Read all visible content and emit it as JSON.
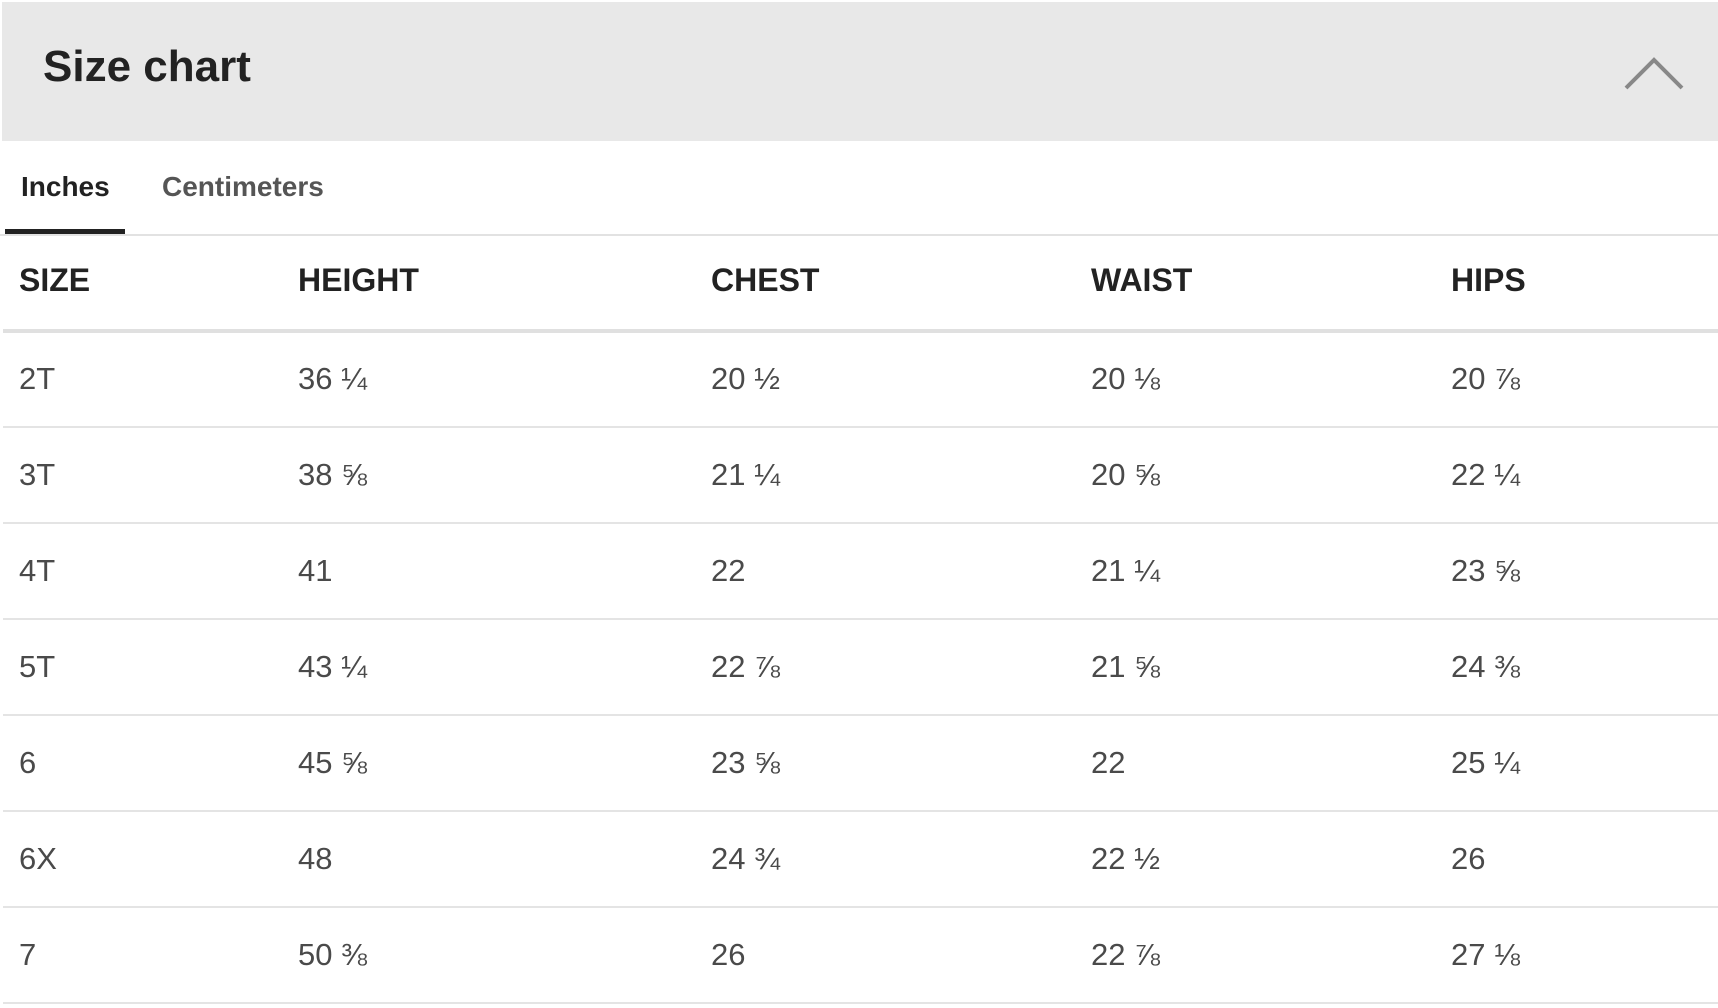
{
  "header": {
    "title": "Size chart"
  },
  "tabs": [
    "Inches",
    "Centimeters"
  ],
  "table": {
    "columns": [
      "SIZE",
      "HEIGHT",
      "CHEST",
      "WAIST",
      "HIPS"
    ],
    "rows": [
      [
        "2T",
        "36 ¼",
        "20 ½",
        "20 ⅛",
        "20 ⅞"
      ],
      [
        "3T",
        "38 ⅝",
        "21 ¼",
        "20 ⅝",
        "22 ¼"
      ],
      [
        "4T",
        "41",
        "22",
        "21 ¼",
        "23 ⅝"
      ],
      [
        "5T",
        "43 ¼",
        "22 ⅞",
        "21 ⅝",
        "24 ⅜"
      ],
      [
        "6",
        "45 ⅝",
        "23 ⅝",
        "22",
        "25 ¼"
      ],
      [
        "6X",
        "48",
        "24 ¾",
        "22 ½",
        "26"
      ],
      [
        "7",
        "50 ⅜",
        "26",
        "22 ⅞",
        "27 ⅛"
      ]
    ]
  }
}
